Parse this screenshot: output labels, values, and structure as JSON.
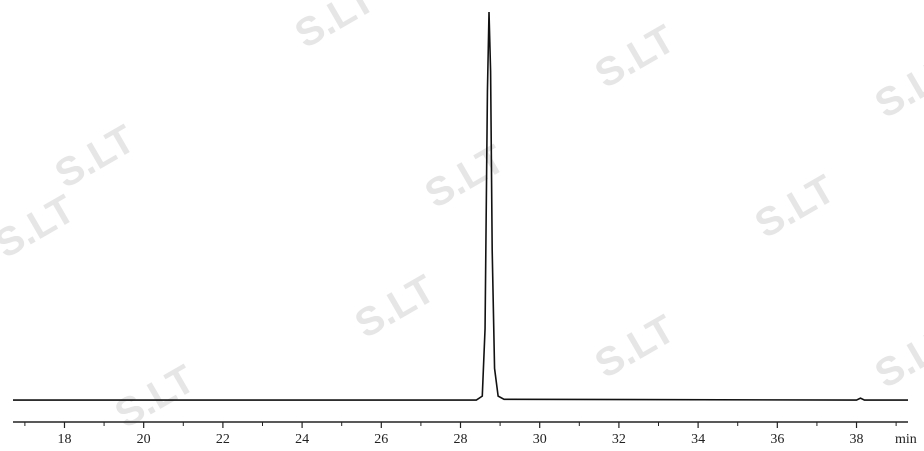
{
  "chart_data": {
    "type": "line",
    "x": [
      16.7,
      28.4,
      28.55,
      28.62,
      28.68,
      28.72,
      28.76,
      28.8,
      28.86,
      28.95,
      29.1,
      38.0,
      38.1,
      38.2,
      39.3
    ],
    "values": [
      2,
      2,
      3,
      20,
      80,
      100,
      85,
      40,
      10,
      3,
      2.2,
      2,
      2.5,
      2,
      2
    ],
    "color": "#111111",
    "xlim": [
      16.7,
      39.3
    ],
    "ylim": [
      0,
      100
    ],
    "xticks": [
      18,
      20,
      22,
      24,
      26,
      28,
      30,
      32,
      34,
      36,
      38
    ],
    "xticks_minor": [
      17,
      19,
      21,
      23,
      25,
      27,
      29,
      31,
      33,
      35,
      37,
      39
    ],
    "xlabel": "min",
    "watermark": "S.LT"
  }
}
